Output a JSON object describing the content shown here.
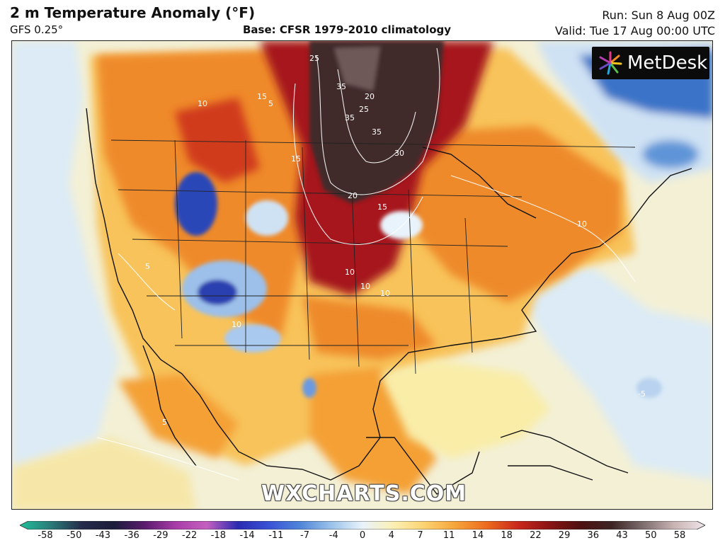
{
  "header": {
    "title": "2 m Temperature Anomaly (°F)",
    "model": "GFS 0.25°",
    "base": "Base: CFSR 1979-2010 climatology",
    "run": "Run: Sun 8 Aug 00Z",
    "valid": "Valid: Tue 17 Aug 00:00 UTC"
  },
  "logo": {
    "text": "MetDesk",
    "icon": "metdesk-starburst-icon"
  },
  "watermark": "WXCHARTS.COM",
  "contour_labels": [
    "25",
    "35",
    "20",
    "25",
    "35",
    "35",
    "30",
    "15",
    "20",
    "15",
    "10",
    "15",
    "5",
    "10",
    "10",
    "10",
    "10",
    "5",
    "10",
    "-5",
    "5"
  ],
  "colorbar": {
    "ticks": [
      "-58",
      "-50",
      "-43",
      "-36",
      "-29",
      "-22",
      "-18",
      "-14",
      "-11",
      "-7",
      "-4",
      "0",
      "4",
      "7",
      "11",
      "14",
      "18",
      "22",
      "29",
      "36",
      "43",
      "50",
      "58"
    ],
    "colors": [
      "#1fbf9a",
      "#2b7a78",
      "#262a4a",
      "#1b1d3a",
      "#5a1b6e",
      "#a83ca8",
      "#c45fc0",
      "#2a2ab0",
      "#3a52d6",
      "#4f86d8",
      "#9bc2ea",
      "#e9f3fb",
      "#fbf0b3",
      "#fcd270",
      "#f6a33a",
      "#ec6a1f",
      "#c9271c",
      "#8a1414",
      "#4e1010",
      "#3d2424",
      "#7d6d6d",
      "#c9b3b3",
      "#efe6ea"
    ]
  },
  "colors": {
    "background": "#ffffff",
    "neutral": "#e9f3fb",
    "warm": "#f6a33a",
    "hot": "#8a1414",
    "extreme": "#3d2424",
    "cool": "#4f86d8"
  }
}
